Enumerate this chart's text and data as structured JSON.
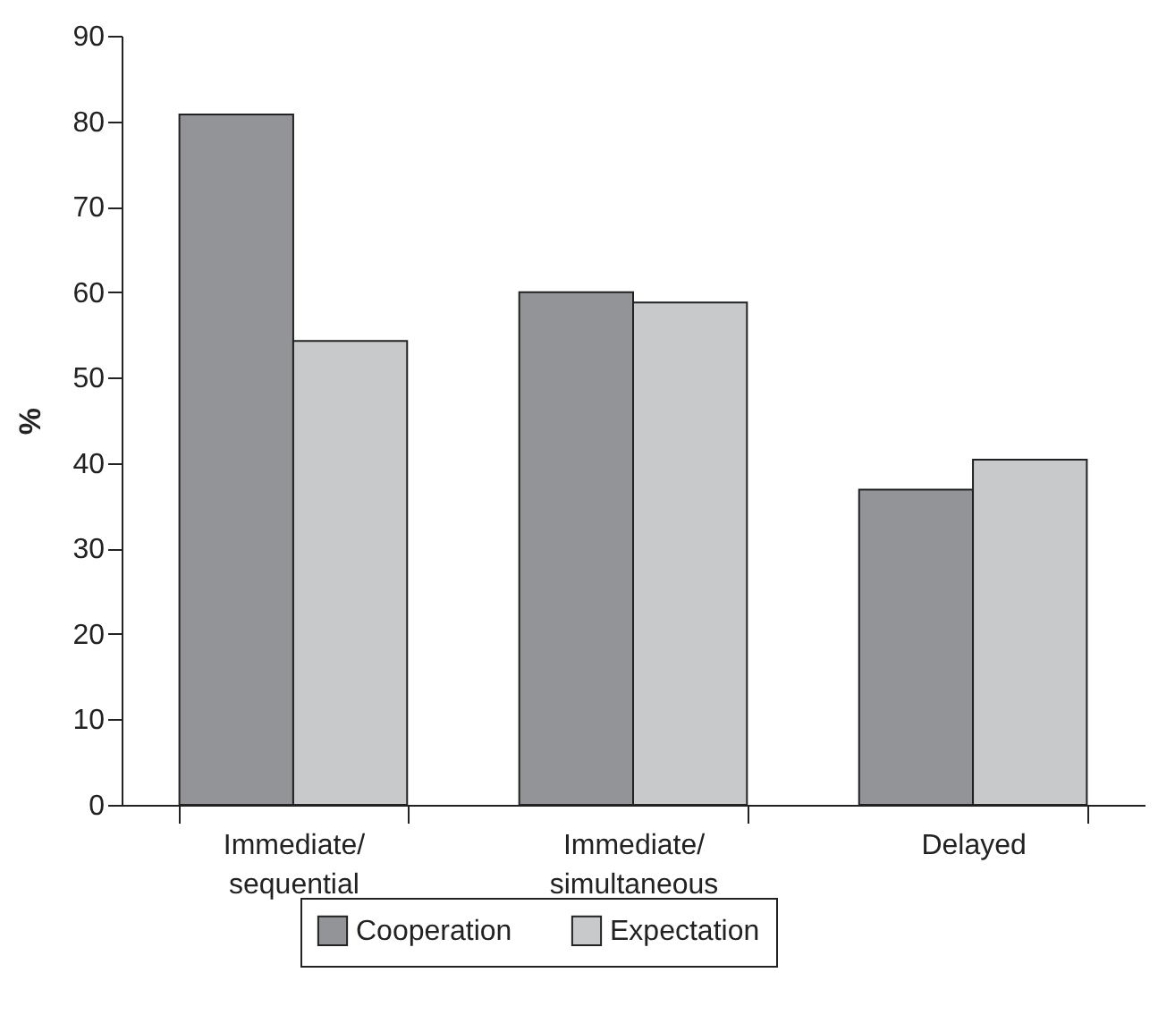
{
  "chart_data": {
    "type": "bar",
    "ylabel": "%",
    "categories": [
      "Immediate/\nsequential",
      "Immediate/\nsimultaneous",
      "Delayed"
    ],
    "series": [
      {
        "name": "Cooperation",
        "color": "#939498",
        "values": [
          80.8,
          60.0,
          36.9
        ]
      },
      {
        "name": "Expectation",
        "color": "#c8c9cb",
        "values": [
          54.3,
          58.8,
          40.4
        ]
      }
    ],
    "ylim": [
      0,
      90
    ],
    "yticks": [
      0,
      10,
      20,
      30,
      40,
      50,
      60,
      70,
      80,
      90
    ],
    "grid": false,
    "legend": "bottom"
  }
}
